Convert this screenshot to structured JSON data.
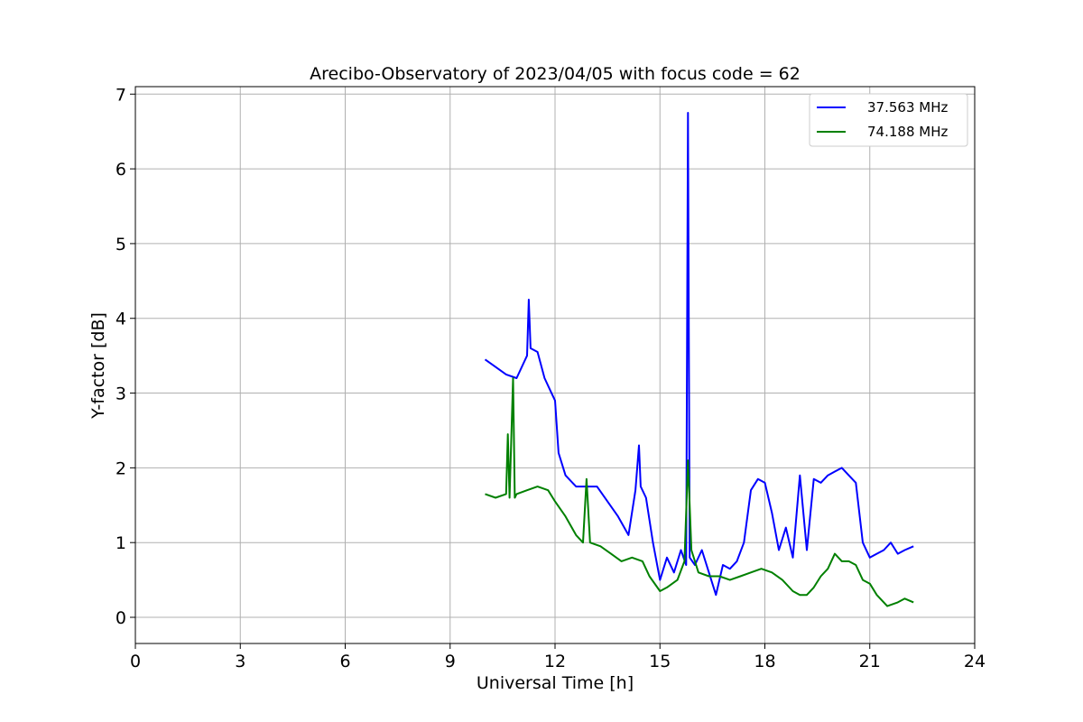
{
  "chart_data": {
    "type": "line",
    "title": "Arecibo-Observatory of 2023/04/05 with focus code = 62",
    "xlabel": "Universal Time [h]",
    "ylabel": "Y-factor [dB]",
    "xlim": [
      0,
      24
    ],
    "ylim": [
      -0.35,
      7.1
    ],
    "xticks": [
      0,
      3,
      6,
      9,
      12,
      15,
      18,
      21,
      24
    ],
    "yticks": [
      0,
      1,
      2,
      3,
      4,
      5,
      6,
      7
    ],
    "grid": true,
    "legend_position": "top-right",
    "series": [
      {
        "name": "37.563 MHz",
        "color": "#0000ff",
        "x": [
          10.0,
          10.3,
          10.6,
          10.9,
          11.2,
          11.25,
          11.3,
          11.5,
          11.7,
          11.9,
          12.0,
          12.1,
          12.3,
          12.6,
          12.9,
          13.2,
          13.5,
          13.8,
          14.1,
          14.3,
          14.4,
          14.45,
          14.6,
          14.8,
          15.0,
          15.2,
          15.4,
          15.6,
          15.75,
          15.8,
          15.85,
          16.0,
          16.2,
          16.4,
          16.6,
          16.8,
          17.0,
          17.2,
          17.4,
          17.6,
          17.8,
          18.0,
          18.2,
          18.4,
          18.6,
          18.8,
          19.0,
          19.2,
          19.4,
          19.6,
          19.8,
          20.0,
          20.2,
          20.4,
          20.6,
          20.8,
          21.0,
          21.2,
          21.4,
          21.6,
          21.8,
          22.0,
          22.25
        ],
        "values": [
          3.45,
          3.35,
          3.25,
          3.2,
          3.5,
          4.25,
          3.6,
          3.55,
          3.2,
          3.0,
          2.9,
          2.2,
          1.9,
          1.75,
          1.75,
          1.75,
          1.55,
          1.35,
          1.1,
          1.7,
          2.3,
          1.75,
          1.6,
          1.0,
          0.5,
          0.8,
          0.6,
          0.9,
          0.7,
          6.75,
          0.8,
          0.7,
          0.9,
          0.6,
          0.3,
          0.7,
          0.65,
          0.75,
          1.0,
          1.7,
          1.85,
          1.8,
          1.4,
          0.9,
          1.2,
          0.8,
          1.9,
          0.9,
          1.85,
          1.8,
          1.9,
          1.95,
          2.0,
          1.9,
          1.8,
          1.0,
          0.8,
          0.85,
          0.9,
          1.0,
          0.85,
          0.9,
          0.95
        ]
      },
      {
        "name": "74.188 MHz",
        "color": "#008000",
        "x": [
          10.0,
          10.3,
          10.6,
          10.65,
          10.7,
          10.8,
          10.85,
          10.9,
          11.2,
          11.5,
          11.8,
          12.0,
          12.3,
          12.6,
          12.8,
          12.9,
          13.0,
          13.3,
          13.6,
          13.9,
          14.2,
          14.5,
          14.7,
          15.0,
          15.2,
          15.5,
          15.7,
          15.8,
          15.9,
          16.1,
          16.4,
          16.7,
          17.0,
          17.3,
          17.6,
          17.9,
          18.2,
          18.5,
          18.8,
          19.0,
          19.2,
          19.4,
          19.6,
          19.8,
          20.0,
          20.2,
          20.4,
          20.6,
          20.8,
          21.0,
          21.2,
          21.5,
          21.8,
          22.0,
          22.25
        ],
        "values": [
          1.65,
          1.6,
          1.65,
          2.45,
          1.6,
          3.2,
          1.6,
          1.65,
          1.7,
          1.75,
          1.7,
          1.55,
          1.35,
          1.1,
          1.0,
          1.85,
          1.0,
          0.95,
          0.85,
          0.75,
          0.8,
          0.75,
          0.55,
          0.35,
          0.4,
          0.5,
          0.75,
          2.1,
          0.9,
          0.6,
          0.55,
          0.55,
          0.5,
          0.55,
          0.6,
          0.65,
          0.6,
          0.5,
          0.35,
          0.3,
          0.3,
          0.4,
          0.55,
          0.65,
          0.85,
          0.75,
          0.75,
          0.7,
          0.5,
          0.45,
          0.3,
          0.15,
          0.2,
          0.25,
          0.2
        ]
      }
    ]
  }
}
